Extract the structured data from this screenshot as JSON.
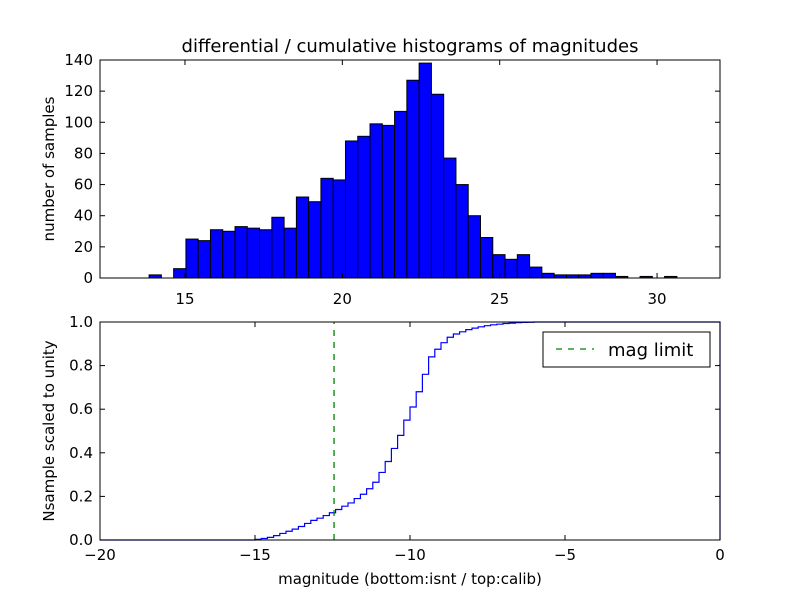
{
  "figure_title": "differential / cumulative histograms of magnitudes",
  "chart_data": [
    {
      "type": "bar",
      "subtype": "histogram",
      "title": "differential / cumulative histograms of magnitudes",
      "xlabel": "",
      "ylabel": "number of samples",
      "xlim": [
        12.3,
        32.0
      ],
      "ylim": [
        0,
        140
      ],
      "xticks": [
        15,
        20,
        25,
        30
      ],
      "yticks": [
        0,
        20,
        40,
        60,
        80,
        100,
        120,
        140
      ],
      "x_tick_position": "top",
      "bar_color": "#0000ff",
      "edge_color": "#000000",
      "bin_start": 12.3,
      "bin_width": 0.39,
      "values": [
        0,
        0,
        0,
        0,
        2,
        0,
        6,
        25,
        24,
        31,
        30,
        33,
        32,
        31,
        39,
        32,
        52,
        49,
        64,
        63,
        88,
        91,
        99,
        98,
        107,
        127,
        138,
        118,
        77,
        60,
        40,
        26,
        15,
        12,
        15,
        7,
        3,
        2,
        2,
        2,
        3,
        3,
        1,
        0,
        1,
        0,
        1,
        0
      ]
    },
    {
      "type": "line",
      "subtype": "step",
      "title": "",
      "xlabel": "magnitude (bottom:isnt / top:calib)",
      "ylabel": "Nsample scaled to unity",
      "xlim": [
        -20,
        0
      ],
      "ylim": [
        0,
        1.0
      ],
      "xticks": [
        -20,
        -15,
        -10,
        -5,
        0
      ],
      "yticks": [
        0.0,
        0.2,
        0.4,
        0.6,
        0.8,
        1.0
      ],
      "series": [
        {
          "name": "cumulative",
          "color": "#0000ff",
          "x": [
            -20,
            -15.0,
            -14.8,
            -14.6,
            -14.4,
            -14.2,
            -14.0,
            -13.8,
            -13.6,
            -13.4,
            -13.2,
            -13.0,
            -12.8,
            -12.6,
            -12.4,
            -12.2,
            -12.0,
            -11.8,
            -11.6,
            -11.4,
            -11.2,
            -11.0,
            -10.8,
            -10.6,
            -10.4,
            -10.2,
            -10.0,
            -9.8,
            -9.6,
            -9.4,
            -9.2,
            -9.0,
            -8.8,
            -8.6,
            -8.4,
            -8.2,
            -8.0,
            -7.8,
            -7.6,
            -7.4,
            -7.2,
            -7.0,
            -6.8,
            -6.6,
            -6.4,
            -6.2,
            -6.0,
            -5.5,
            0
          ],
          "y": [
            0.0,
            0.003,
            0.007,
            0.012,
            0.02,
            0.03,
            0.04,
            0.05,
            0.062,
            0.076,
            0.09,
            0.1,
            0.112,
            0.125,
            0.14,
            0.155,
            0.17,
            0.19,
            0.21,
            0.235,
            0.265,
            0.31,
            0.36,
            0.42,
            0.48,
            0.55,
            0.61,
            0.68,
            0.76,
            0.84,
            0.875,
            0.905,
            0.93,
            0.945,
            0.955,
            0.965,
            0.972,
            0.978,
            0.983,
            0.987,
            0.99,
            0.993,
            0.995,
            0.997,
            0.998,
            0.999,
            1.0,
            1.0,
            1.0
          ]
        },
        {
          "name": "mag limit",
          "color": "#008000",
          "style": "dashed",
          "x": [
            -12.45,
            -12.45
          ],
          "y": [
            0.0,
            1.0
          ]
        }
      ],
      "legend": {
        "entries": [
          "mag limit"
        ],
        "placement": "top-right"
      }
    }
  ]
}
